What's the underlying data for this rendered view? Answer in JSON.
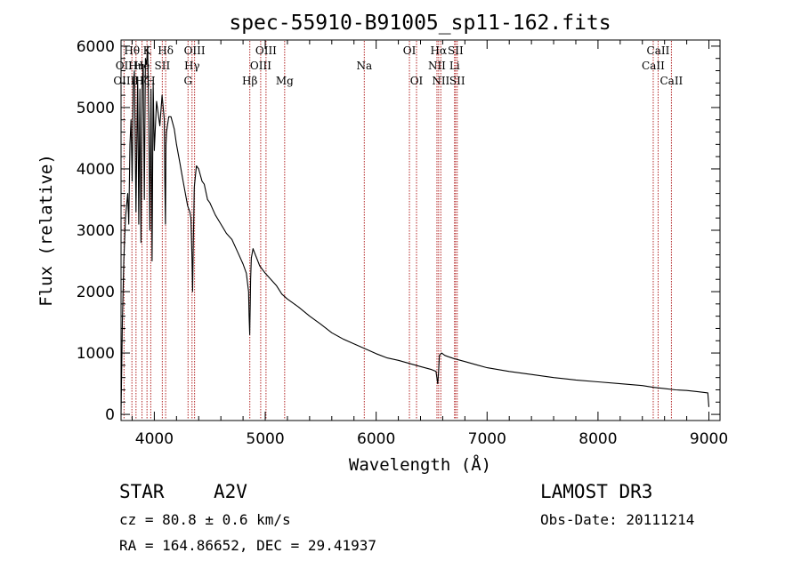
{
  "chart_data": {
    "type": "line",
    "title": "spec-55910-B91005_sp11-162.fits",
    "xlabel": "Wavelength (Å)",
    "ylabel": "Flux (relative)",
    "xlim": [
      3700,
      9100
    ],
    "ylim": [
      -100,
      6100
    ],
    "x_ticks": [
      4000,
      5000,
      6000,
      7000,
      8000,
      9000
    ],
    "y_ticks": [
      0,
      1000,
      2000,
      3000,
      4000,
      5000,
      6000
    ],
    "series": [
      {
        "name": "flux",
        "x": [
          3700,
          3712,
          3725,
          3740,
          3750,
          3760,
          3770,
          3780,
          3790,
          3800,
          3810,
          3820,
          3835,
          3850,
          3860,
          3870,
          3880,
          3890,
          3900,
          3910,
          3920,
          3930,
          3940,
          3950,
          3960,
          3970,
          3980,
          3990,
          4000,
          4020,
          4050,
          4070,
          4090,
          4095,
          4100,
          4105,
          4110,
          4130,
          4150,
          4180,
          4200,
          4230,
          4250,
          4270,
          4300,
          4320,
          4330,
          4340,
          4345,
          4350,
          4360,
          4380,
          4400,
          4430,
          4450,
          4480,
          4500,
          4550,
          4600,
          4650,
          4700,
          4750,
          4800,
          4830,
          4850,
          4855,
          4860,
          4862,
          4865,
          4868,
          4875,
          4890,
          4900,
          4950,
          5000,
          5050,
          5100,
          5150,
          5200,
          5300,
          5400,
          5500,
          5600,
          5700,
          5800,
          5900,
          6000,
          6100,
          6200,
          6300,
          6400,
          6500,
          6540,
          6555,
          6563,
          6570,
          6590,
          6620,
          6650,
          6700,
          6800,
          6900,
          7000,
          7200,
          7400,
          7600,
          7800,
          8000,
          8200,
          8400,
          8500,
          8600,
          8700,
          8800,
          8900,
          8990,
          9000
        ],
        "values": [
          0,
          1500,
          2500,
          3200,
          3400,
          3600,
          3100,
          4400,
          4800,
          3800,
          5300,
          5600,
          3300,
          5500,
          3100,
          5300,
          2800,
          5300,
          5700,
          3500,
          5800,
          5700,
          6000,
          4800,
          3000,
          5300,
          2500,
          5400,
          4300,
          5100,
          4700,
          5200,
          4800,
          3800,
          3100,
          4400,
          4600,
          4850,
          4850,
          4650,
          4400,
          4100,
          3900,
          3700,
          3400,
          3300,
          3200,
          2500,
          2000,
          2600,
          3700,
          4050,
          4000,
          3800,
          3750,
          3500,
          3450,
          3250,
          3100,
          2950,
          2850,
          2650,
          2450,
          2300,
          2000,
          1600,
          1300,
          1500,
          1800,
          2200,
          2550,
          2700,
          2650,
          2420,
          2300,
          2200,
          2100,
          1960,
          1880,
          1750,
          1600,
          1470,
          1330,
          1230,
          1150,
          1070,
          990,
          920,
          880,
          830,
          780,
          730,
          700,
          500,
          700,
          960,
          1000,
          960,
          940,
          910,
          860,
          810,
          760,
          700,
          650,
          600,
          560,
          530,
          500,
          470,
          440,
          420,
          400,
          390,
          370,
          350,
          120
        ]
      }
    ],
    "emission_lines": [
      {
        "label": "Hθ",
        "wavelength": 3798,
        "row": 1
      },
      {
        "label": "K",
        "wavelength": 3934,
        "row": 1
      },
      {
        "label": "Hδ",
        "wavelength": 4102,
        "row": 1
      },
      {
        "label": "OIII",
        "wavelength": 4363,
        "row": 1
      },
      {
        "label": "OIII",
        "wavelength": 5007,
        "row": 1
      },
      {
        "label": "OI",
        "wavelength": 6300,
        "row": 1
      },
      {
        "label": "Hα",
        "wavelength": 6563,
        "row": 1
      },
      {
        "label": "SII",
        "wavelength": 6716,
        "row": 1
      },
      {
        "label": "CaII",
        "wavelength": 8542,
        "row": 1
      },
      {
        "label": "OII",
        "wavelength": 3727,
        "row": 2
      },
      {
        "label": "Hη",
        "wavelength": 3835,
        "row": 2
      },
      {
        "label": "He",
        "wavelength": 3889,
        "row": 2
      },
      {
        "label": "SII",
        "wavelength": 4072,
        "row": 2
      },
      {
        "label": "Hγ",
        "wavelength": 4340,
        "row": 2
      },
      {
        "label": "OIII",
        "wavelength": 4959,
        "row": 2
      },
      {
        "label": "Na",
        "wavelength": 5893,
        "row": 2
      },
      {
        "label": "NII",
        "wavelength": 6548,
        "row": 2
      },
      {
        "label": "Li",
        "wavelength": 6707,
        "row": 2
      },
      {
        "label": "CaII",
        "wavelength": 8498,
        "row": 2
      },
      {
        "label": "OIII",
        "wavelength": 3727,
        "row": 3
      },
      {
        "label": "Hζ",
        "wavelength": 3889,
        "row": 3
      },
      {
        "label": "H",
        "wavelength": 3968,
        "row": 3
      },
      {
        "label": "G",
        "wavelength": 4304,
        "row": 3
      },
      {
        "label": "Hβ",
        "wavelength": 4861,
        "row": 3
      },
      {
        "label": "Mg",
        "wavelength": 5175,
        "row": 3
      },
      {
        "label": "OI",
        "wavelength": 6364,
        "row": 3
      },
      {
        "label": "NII",
        "wavelength": 6583,
        "row": 3
      },
      {
        "label": "SII",
        "wavelength": 6731,
        "row": 3
      },
      {
        "label": "CaII",
        "wavelength": 8662,
        "row": 3
      }
    ]
  },
  "info": {
    "object_class": "STAR",
    "subclass": "A2V",
    "survey": "LAMOST DR3",
    "redshift": "cz = 80.8 ± 0.6 km/s",
    "obs_date": "Obs-Date: 20111214",
    "coords": "RA = 164.86652, DEC =  29.41937"
  },
  "colors": {
    "spectrum": "#000000",
    "line_markers": "#b22222",
    "axes": "#000000",
    "background": "#ffffff"
  }
}
